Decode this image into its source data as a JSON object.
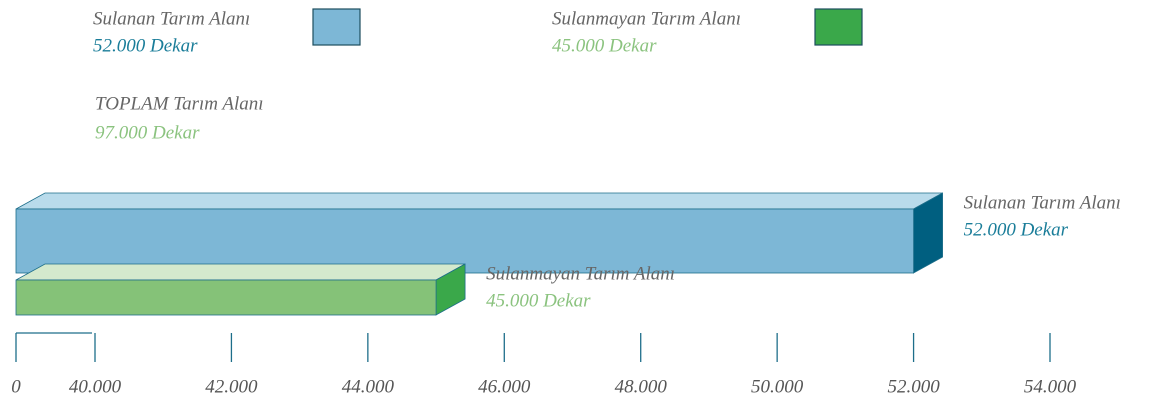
{
  "chart_data": {
    "type": "bar3d-horizontal",
    "categories": [
      "Sulanan Tarım Alanı",
      "Sulanmayan Tarım Alanı"
    ],
    "values": [
      52000,
      45000
    ],
    "value_labels": [
      "52.000 Dekar",
      "45.000 Dekar"
    ],
    "colors": [
      "#7db7d6",
      "#85c278"
    ],
    "top_colors": [
      "#b9dbeb",
      "#d4e9cd"
    ],
    "side_colors": [
      "#005f80",
      "#3aa84a"
    ],
    "label_colors": [
      "#1a7d99",
      "#8bc37f"
    ],
    "total_label": "TOPLAM Tarım Alanı",
    "total_value_label": "97.000 Dekar",
    "xlim": [
      0,
      54000
    ],
    "xticks": [
      0,
      {
        "value": 40000,
        "label": "40.000"
      },
      {
        "value": 42000,
        "label": "42.000"
      },
      {
        "value": 44000,
        "label": "44.000"
      },
      {
        "value": 46000,
        "label": "46.000"
      },
      {
        "value": 48000,
        "label": "48.000"
      },
      {
        "value": 50000,
        "label": "50.000"
      },
      {
        "value": 52000,
        "label": "52.000"
      },
      {
        "value": 54000,
        "label": "54.000"
      }
    ]
  }
}
